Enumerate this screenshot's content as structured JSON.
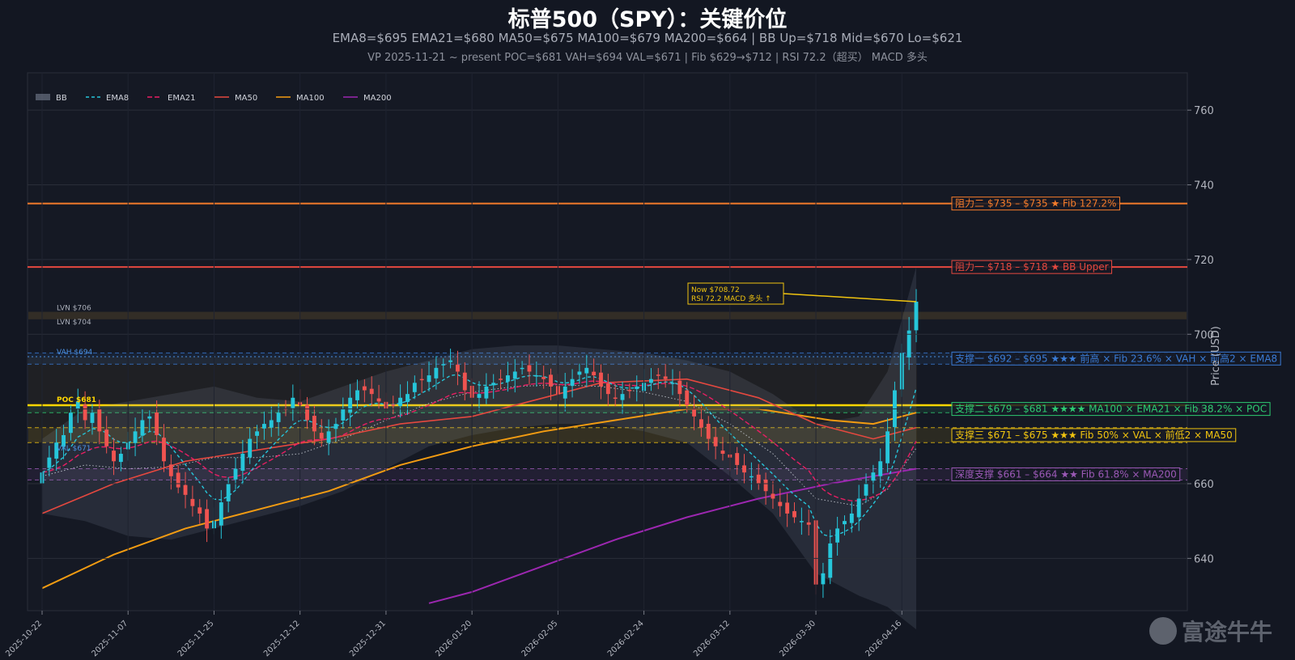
{
  "header": {
    "title": "标普500（SPY）：关键价位",
    "subtitle1": "EMA8=$695   EMA21=$680   MA50=$675   MA100=$679   MA200=$664   |   BB Up=$718   Mid=$670   Lo=$621",
    "subtitle2": "VP 2025-11-21 ~ present   POC=$681  VAH=$694  VAL=$671   |   Fib $629→$712   |   RSI 72.2（超买）   MACD 多头"
  },
  "colors": {
    "background": "#131722",
    "panel": "#151924",
    "up": "#26c6da",
    "down": "#ef5350",
    "ema8": "#26c6da",
    "ema21": "#e91e63",
    "ma50": "#e5483f",
    "ma100": "#f39c12",
    "ma200": "#9c27b0",
    "resistance2": "#f57c2b",
    "resistance1": "#e5483f",
    "support1": "#3a7bd5",
    "support2": "#2ecc71",
    "support3": "#f1c40f",
    "deep_support": "#9b59b6",
    "poc": "#ffd600"
  },
  "chart_data": {
    "type": "candlestick",
    "ylabel": "Price (USD)",
    "ylim": [
      626,
      770
    ],
    "yticks": [
      640,
      660,
      680,
      700,
      720,
      740,
      760
    ],
    "ytick_labels": [
      "640",
      "660",
      "680",
      "700",
      "720",
      "740",
      "760"
    ],
    "xtick_labels": [
      "2025-10-22",
      "2025-11-07",
      "2025-11-25",
      "2025-12-12",
      "2025-12-31",
      "2026-01-20",
      "2026-02-05",
      "2026-02-24",
      "2026-03-12",
      "2026-03-30",
      "2026-04-16"
    ],
    "xtick_index": [
      0,
      12,
      24,
      36,
      48,
      60,
      72,
      84,
      96,
      108,
      120
    ],
    "last_index": 122,
    "legend": {
      "placement": "top-left",
      "entries": [
        {
          "label": "BB",
          "key": "bb"
        },
        {
          "label": "EMA8",
          "key": "ema8"
        },
        {
          "label": "EMA21",
          "key": "ema21"
        },
        {
          "label": "MA50",
          "key": "ma50"
        },
        {
          "label": "MA100",
          "key": "ma100"
        },
        {
          "label": "MA200",
          "key": "ma200"
        }
      ]
    },
    "closes": [
      663,
      667,
      671,
      673,
      679,
      682,
      677,
      679,
      674,
      670,
      666,
      668,
      671,
      674,
      677,
      678,
      673,
      666,
      662,
      659,
      657,
      654,
      652,
      648,
      650,
      655,
      660,
      664,
      668,
      672,
      674,
      676,
      677,
      679,
      680,
      683,
      681,
      677,
      674,
      672,
      674,
      676,
      680,
      683,
      685,
      685,
      684,
      682,
      680,
      681,
      683,
      684,
      687,
      688,
      689,
      691,
      692,
      693,
      690,
      685,
      683,
      684,
      686,
      687,
      688,
      689,
      690,
      691,
      690,
      689,
      688,
      686,
      684,
      686,
      688,
      690,
      691,
      689,
      686,
      684,
      683,
      684,
      685,
      686,
      687,
      688,
      689,
      688,
      687,
      684,
      681,
      678,
      675,
      672,
      670,
      668,
      667,
      665,
      663,
      662,
      660,
      658,
      656,
      654,
      652,
      651,
      650,
      649,
      633,
      636,
      644,
      648,
      650,
      652,
      656,
      660,
      663,
      666,
      674,
      685,
      695,
      701,
      708.72
    ],
    "bands": {
      "bb_upper": [
        [
          0,
          672
        ],
        [
          6,
          680
        ],
        [
          12,
          682
        ],
        [
          18,
          684
        ],
        [
          24,
          686
        ],
        [
          30,
          683
        ],
        [
          36,
          682
        ],
        [
          42,
          686
        ],
        [
          48,
          690
        ],
        [
          54,
          693
        ],
        [
          60,
          696
        ],
        [
          66,
          697
        ],
        [
          72,
          697
        ],
        [
          78,
          696
        ],
        [
          84,
          695
        ],
        [
          90,
          693
        ],
        [
          96,
          690
        ],
        [
          102,
          684
        ],
        [
          108,
          676
        ],
        [
          114,
          678
        ],
        [
          118,
          690
        ],
        [
          122,
          718
        ]
      ],
      "bb_lower": [
        [
          0,
          652
        ],
        [
          6,
          650
        ],
        [
          12,
          646
        ],
        [
          18,
          645
        ],
        [
          24,
          648
        ],
        [
          30,
          651
        ],
        [
          36,
          654
        ],
        [
          42,
          658
        ],
        [
          48,
          664
        ],
        [
          54,
          670
        ],
        [
          60,
          673
        ],
        [
          66,
          675
        ],
        [
          72,
          676
        ],
        [
          78,
          676
        ],
        [
          84,
          674
        ],
        [
          90,
          671
        ],
        [
          96,
          662
        ],
        [
          102,
          652
        ],
        [
          108,
          636
        ],
        [
          114,
          630
        ],
        [
          118,
          627
        ],
        [
          122,
          621
        ]
      ],
      "ma50": [
        [
          0,
          652
        ],
        [
          10,
          660
        ],
        [
          20,
          666
        ],
        [
          30,
          669
        ],
        [
          40,
          672
        ],
        [
          50,
          676
        ],
        [
          60,
          678
        ],
        [
          70,
          683
        ],
        [
          78,
          687
        ],
        [
          90,
          688
        ],
        [
          100,
          683
        ],
        [
          108,
          676
        ],
        [
          116,
          672
        ],
        [
          122,
          675
        ]
      ],
      "ma100": [
        [
          0,
          632
        ],
        [
          10,
          641
        ],
        [
          20,
          648
        ],
        [
          30,
          653
        ],
        [
          40,
          658
        ],
        [
          50,
          665
        ],
        [
          60,
          670
        ],
        [
          70,
          674
        ],
        [
          80,
          677
        ],
        [
          90,
          680
        ],
        [
          100,
          680
        ],
        [
          110,
          677
        ],
        [
          116,
          676
        ],
        [
          122,
          679
        ]
      ],
      "ma200": [
        [
          54,
          628
        ],
        [
          60,
          631
        ],
        [
          70,
          638
        ],
        [
          80,
          645
        ],
        [
          90,
          651
        ],
        [
          100,
          656
        ],
        [
          110,
          660
        ],
        [
          116,
          662
        ],
        [
          122,
          664
        ]
      ]
    },
    "levels": [
      {
        "key": "resistance2",
        "low": 735,
        "high": 735,
        "label": "阻力二  $735 – $735  ★  Fib 127.2%",
        "color": "#f57c2b",
        "style": "solid"
      },
      {
        "key": "resistance1",
        "low": 718,
        "high": 718,
        "label": "阻力一  $718 – $718  ★  BB Upper",
        "color": "#e5483f",
        "style": "solid"
      },
      {
        "key": "support1",
        "low": 692,
        "high": 695,
        "label": "支撑一  $692 – $695  ★★★  前高  ×  Fib 23.6%  ×  VAH  ×  前高2  ×  EMA8",
        "color": "#3a7bd5",
        "style": "dashed"
      },
      {
        "key": "support2",
        "low": 679,
        "high": 681,
        "label": "支撑二  $679 – $681  ★★★★  MA100  ×  EMA21  ×  Fib 38.2%  ×  POC",
        "color": "#2ecc71",
        "style": "dashed"
      },
      {
        "key": "support3",
        "low": 671,
        "high": 675,
        "label": "支撑三  $671 – $675  ★★★  Fib 50%  ×  VAL  ×  前低2  ×  MA50",
        "color": "#f1c40f",
        "style": "dashed"
      },
      {
        "key": "deep_support",
        "low": 661,
        "high": 664,
        "label": "深度支撑  $661 – $664  ★★  Fib 61.8%  ×  MA200",
        "color": "#9b59b6",
        "style": "dashed"
      }
    ],
    "volume_profile": {
      "poc": 681,
      "vah": 694,
      "val": 671,
      "poc_label": "POC  $681",
      "vah_label": "VAH  $694",
      "val_label": "VAL  $671",
      "lvn": [
        {
          "value": 706,
          "label": "LVN  $706"
        },
        {
          "value": 704,
          "label": "LVN  $704"
        }
      ]
    },
    "annotation": {
      "line1": "Now $708.72",
      "line2": "RSI 72.2  MACD 多头 ↑",
      "value": 708.72
    }
  },
  "watermark": {
    "text": "富途牛牛",
    "icon": "futu-bull-logo-icon"
  }
}
